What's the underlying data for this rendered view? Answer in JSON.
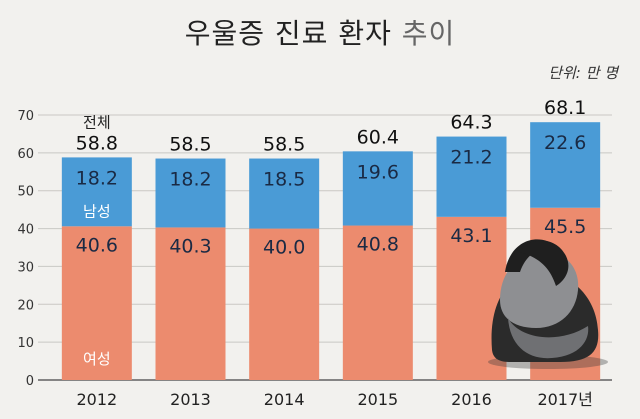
{
  "header": {
    "title_main": "우울증 진료 환자",
    "title_light": " 추이",
    "unit": "단위: 만 명"
  },
  "colors": {
    "male": "#4a9bd6",
    "female": "#ec8b6e",
    "background": "#f2f1ee"
  },
  "chart_data": {
    "type": "bar",
    "stacked": true,
    "title": "우울증 진료 환자 추이",
    "unit": "단위: 만 명",
    "categories": [
      "2012",
      "2013",
      "2014",
      "2015",
      "2016",
      "2017년"
    ],
    "series": [
      {
        "name": "여성",
        "values": [
          40.6,
          40.3,
          40.0,
          40.8,
          43.1,
          45.5
        ],
        "color": "#ec8b6e"
      },
      {
        "name": "남성",
        "values": [
          18.2,
          18.2,
          18.5,
          19.6,
          21.2,
          22.6
        ],
        "color": "#4a9bd6"
      }
    ],
    "totals_label": "전체",
    "totals": [
      58.8,
      58.5,
      58.5,
      60.4,
      64.3,
      68.1
    ],
    "value_labels": {
      "female": [
        "40.6",
        "40.3",
        "40.0",
        "40.8",
        "43.1",
        "45.5"
      ],
      "male": [
        "18.2",
        "18.2",
        "18.5",
        "19.6",
        "21.2",
        "22.6"
      ],
      "totals": [
        "58.8",
        "58.5",
        "58.5",
        "60.4",
        "64.3",
        "68.1"
      ]
    },
    "ylim": [
      0,
      70
    ],
    "yticks": [
      0,
      10,
      20,
      30,
      40,
      50,
      60,
      70
    ],
    "grid": true,
    "legend": "inline labels on first bar"
  }
}
